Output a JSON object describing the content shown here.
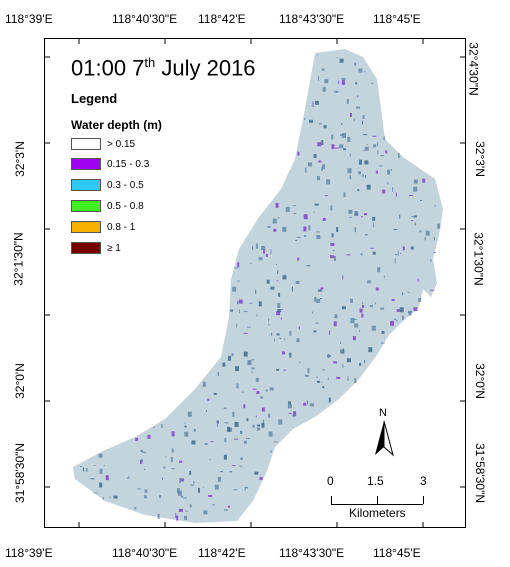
{
  "map": {
    "title_prefix": "01:00 7",
    "title_sup": "th",
    "title_suffix": " July 2016",
    "legend_title": "Legend",
    "legend_subtitle": "Water depth (m)",
    "legend_items": [
      {
        "label": "> 0.15",
        "color": "#ffffff"
      },
      {
        "label": "0.15 - 0.3",
        "color": "#a000f0"
      },
      {
        "label": "0.3 - 0.5",
        "color": "#30c8f8"
      },
      {
        "label": "0.5 - 0.8",
        "color": "#40f020"
      },
      {
        "label": "0.8 - 1",
        "color": "#f8b000"
      },
      {
        "label": "≥ 1",
        "color": "#780000"
      }
    ],
    "land_color": "#c4d4dc",
    "water_dark_color": "#2e5f85",
    "water_med_color": "#5a7fa2",
    "purple_color": "#7a30c8",
    "north_label": "N",
    "scale": {
      "labels": [
        "0",
        "1.5",
        "3"
      ],
      "unit": "Kilometers"
    },
    "top_ticks": [
      "118°39'E",
      "118°40'30\"E",
      "118°42'E",
      "118°43'30\"E",
      "118°45'E"
    ],
    "bottom_ticks": [
      "118°39'E",
      "118°40'30\"E",
      "118°42'E",
      "118°43'30\"E",
      "118°45'E"
    ],
    "left_ticks": [
      "32°3'N",
      "32°1'30\"N",
      "32°0'N",
      "31°58'30\"N"
    ],
    "right_ticks": [
      "32°4'30\"N",
      "32°3'N",
      "32°1'30\"N",
      "32°0'N",
      "31°58'30\"N"
    ]
  }
}
